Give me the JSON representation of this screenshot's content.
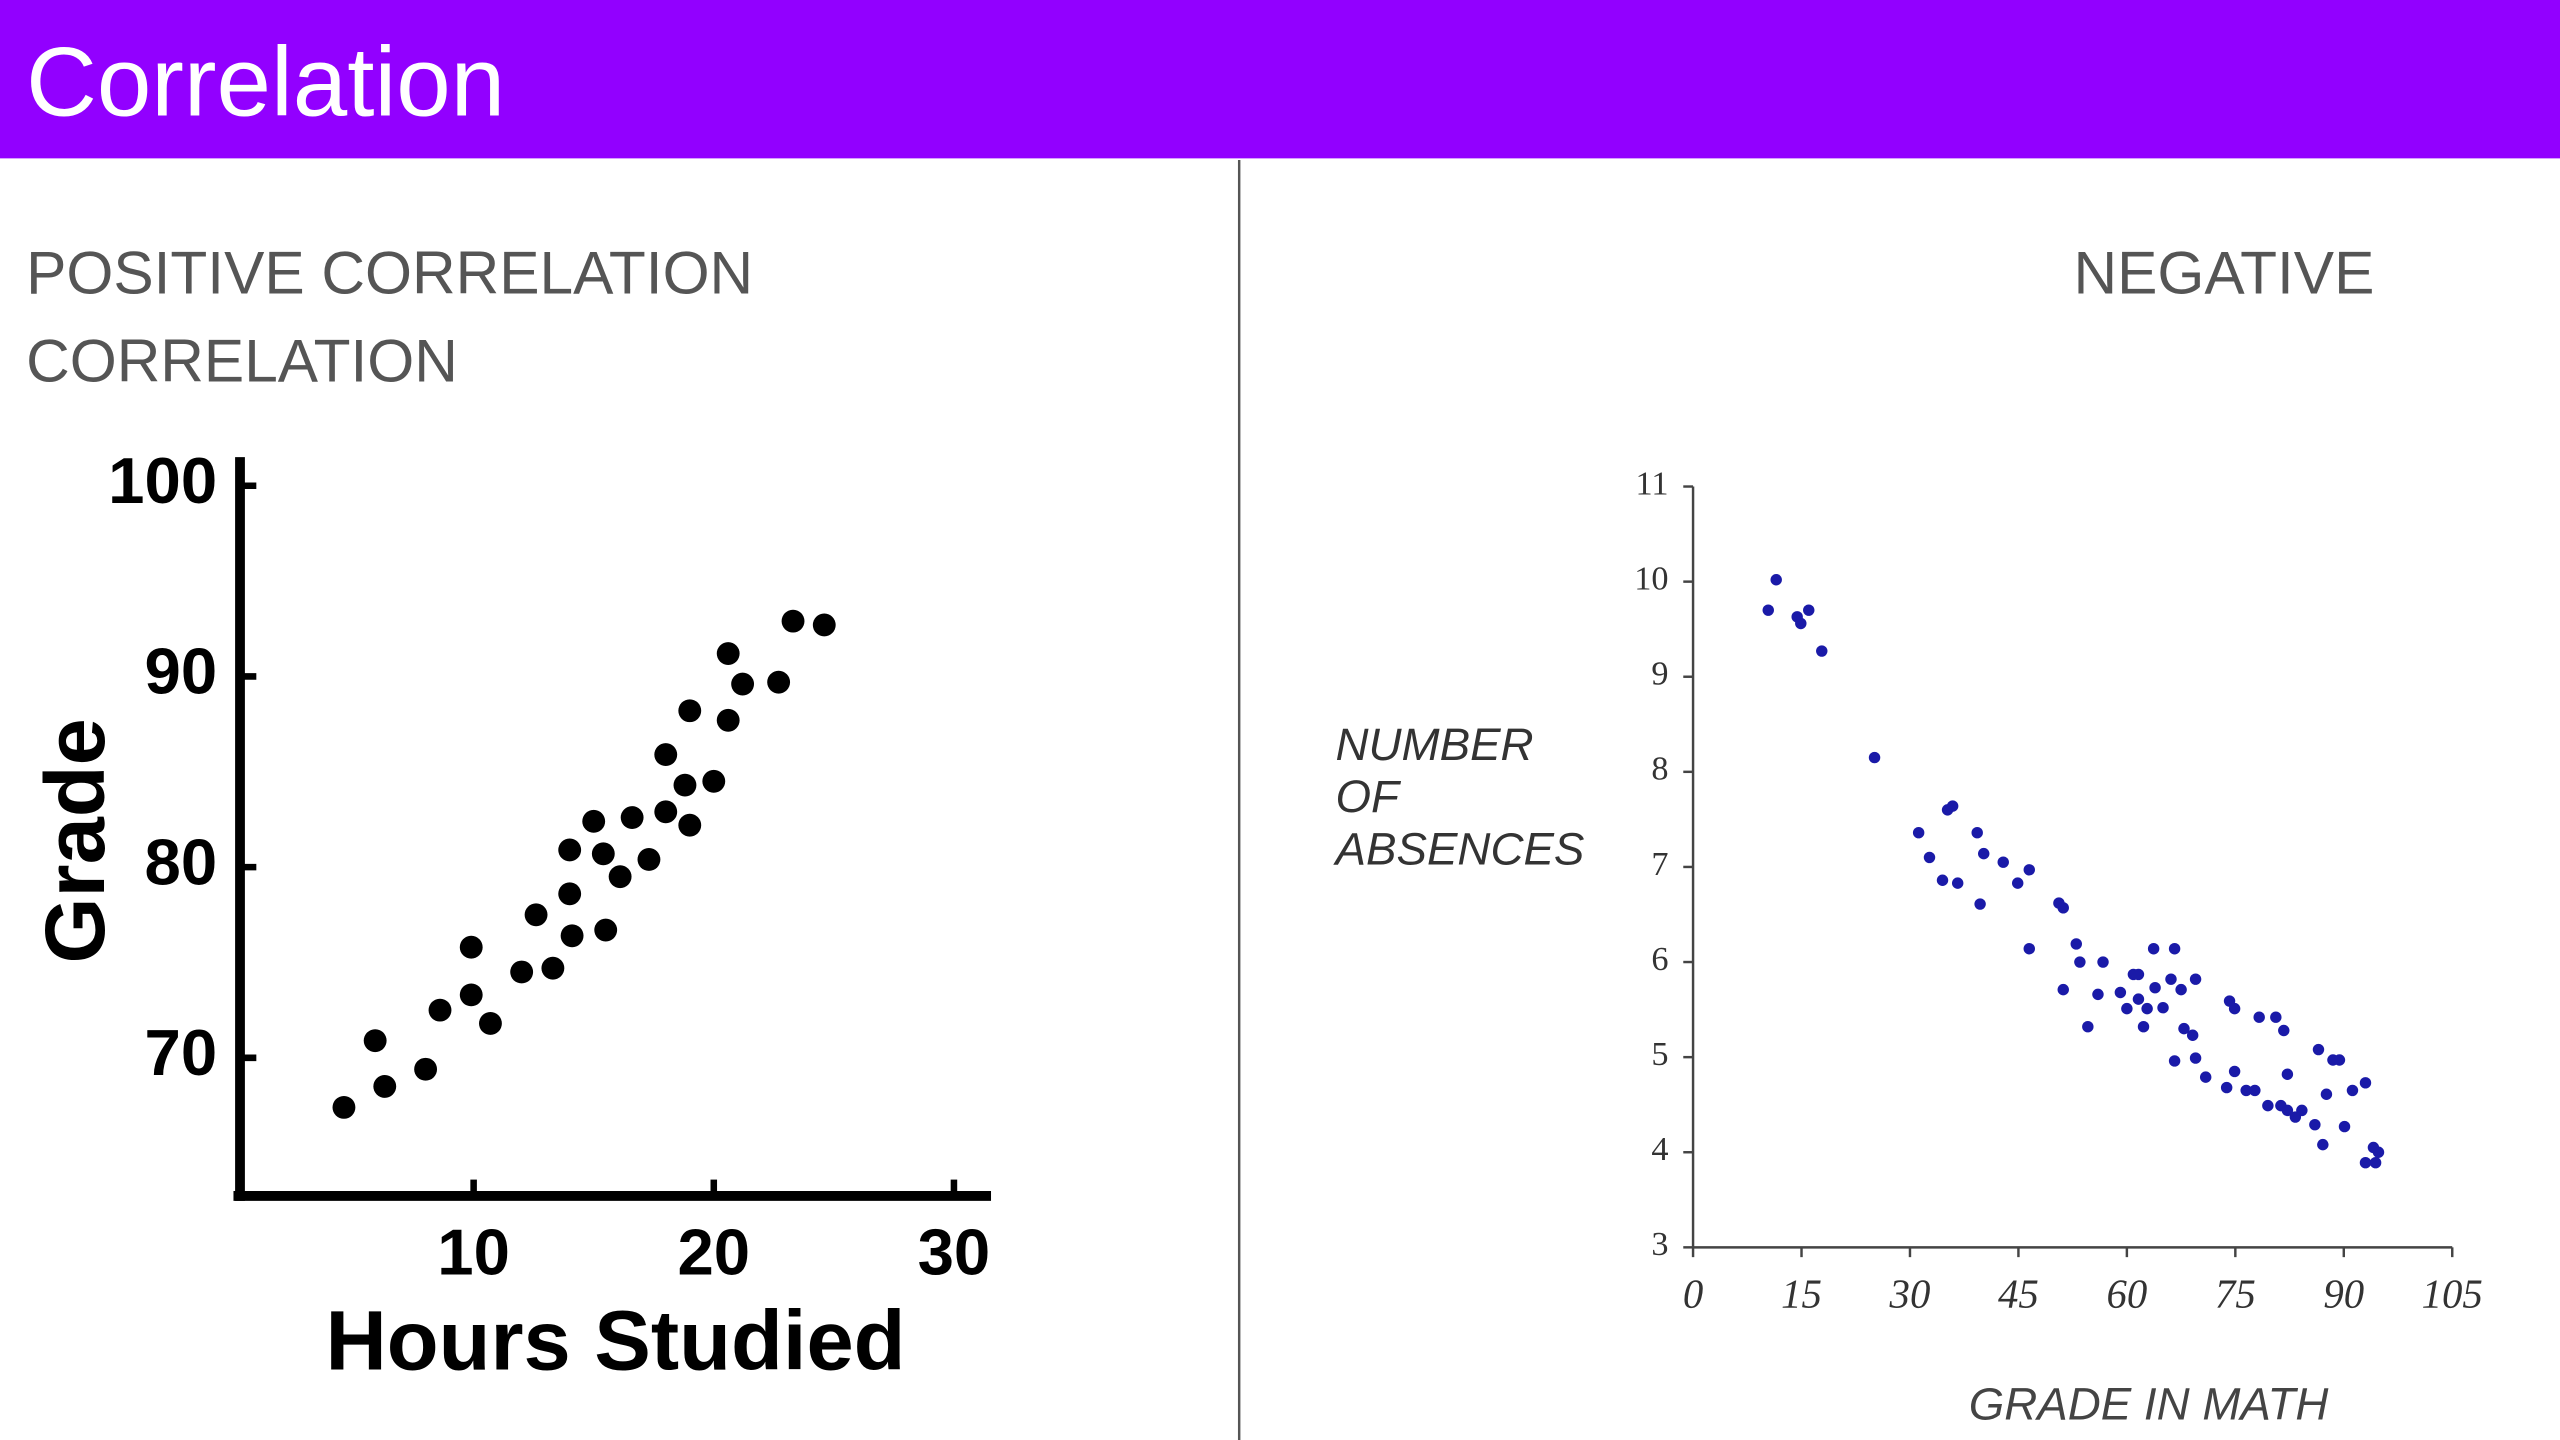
{
  "title": "Correlation",
  "panels": [
    {
      "heading": [
        "POSITIVE CORRELATION",
        "CORRELATION"
      ]
    },
    {
      "heading": [
        "NEGATIVE"
      ]
    }
  ],
  "chart_data": [
    {
      "type": "scatter",
      "x_label": "Hours Studied",
      "y_label": "Grade",
      "color": "#000000",
      "xlim": [
        0,
        31
      ],
      "xticks": [
        10,
        20,
        30
      ],
      "ylim": [
        62.5,
        101.5
      ],
      "yticks": [
        70,
        80,
        90,
        100
      ],
      "x": [
        4.6,
        5.9,
        6.3,
        8.0,
        8.6,
        9.9,
        9.9,
        10.7,
        12.0,
        12.6,
        13.3,
        14.0,
        14.0,
        14.1,
        15.0,
        15.4,
        15.5,
        16.1,
        16.6,
        17.3,
        18.0,
        18.0,
        18.8,
        19.0,
        19.0,
        20.0,
        20.6,
        20.6,
        21.2,
        22.7,
        23.3,
        24.6
      ],
      "values": [
        67.4,
        70.9,
        68.5,
        69.4,
        72.5,
        75.8,
        73.3,
        71.8,
        74.5,
        77.5,
        74.7,
        78.6,
        80.9,
        76.4,
        82.4,
        80.7,
        76.7,
        79.5,
        82.6,
        80.4,
        85.9,
        82.9,
        84.3,
        82.2,
        88.2,
        84.5,
        87.7,
        91.2,
        89.6,
        89.7,
        92.9,
        92.7
      ]
    },
    {
      "type": "scatter",
      "x_label": "GRADE IN MATH",
      "y_label": [
        "NUMBER",
        "OF",
        "ABSENCES"
      ],
      "color": "#1a1aa8",
      "xlim": [
        0,
        105
      ],
      "xticks": [
        0,
        15,
        30,
        45,
        60,
        75,
        90,
        105
      ],
      "ylim": [
        3,
        11
      ],
      "yticks": [
        3,
        4,
        5,
        6,
        7,
        8,
        9,
        10,
        11
      ],
      "x": [
        10.4,
        11.5,
        14.4,
        14.9,
        16.0,
        17.8,
        25.1,
        31.2,
        32.7,
        34.5,
        35.2,
        35.9,
        36.6,
        39.3,
        39.7,
        40.2,
        42.9,
        44.9,
        46.5,
        46.5,
        50.6,
        51.2,
        51.2,
        53.0,
        53.5,
        54.6,
        56.0,
        56.7,
        59.1,
        60.0,
        60.9,
        61.6,
        61.6,
        62.3,
        62.8,
        63.7,
        63.9,
        65.0,
        66.1,
        66.6,
        66.6,
        67.5,
        67.9,
        69.1,
        69.5,
        69.5,
        70.9,
        73.8,
        74.2,
        74.9,
        74.9,
        76.5,
        77.7,
        78.3,
        79.5,
        80.6,
        81.3,
        81.7,
        82.2,
        82.2,
        83.3,
        84.2,
        86.0,
        86.5,
        87.1,
        87.6,
        88.5,
        89.4,
        90.1,
        91.2,
        93.0,
        93.0,
        94.1,
        94.8,
        94.4
      ],
      "values": [
        9.7,
        10.02,
        9.63,
        9.56,
        9.7,
        9.27,
        8.15,
        7.36,
        7.1,
        6.86,
        7.6,
        7.64,
        6.83,
        7.36,
        6.61,
        7.14,
        7.05,
        6.83,
        6.97,
        6.14,
        6.62,
        6.57,
        5.71,
        6.19,
        6.0,
        5.32,
        5.66,
        6.0,
        5.68,
        5.51,
        5.87,
        5.87,
        5.61,
        5.32,
        5.51,
        6.14,
        5.73,
        5.52,
        5.82,
        6.14,
        4.96,
        5.71,
        5.3,
        5.23,
        5.82,
        4.99,
        4.79,
        4.68,
        5.59,
        5.51,
        4.85,
        4.65,
        4.65,
        5.42,
        4.49,
        5.42,
        4.49,
        5.28,
        4.82,
        4.44,
        4.37,
        4.44,
        4.29,
        5.08,
        4.08,
        4.61,
        4.97,
        4.97,
        4.27,
        4.65,
        4.73,
        3.89,
        4.05,
        4.0,
        3.89
      ]
    }
  ]
}
